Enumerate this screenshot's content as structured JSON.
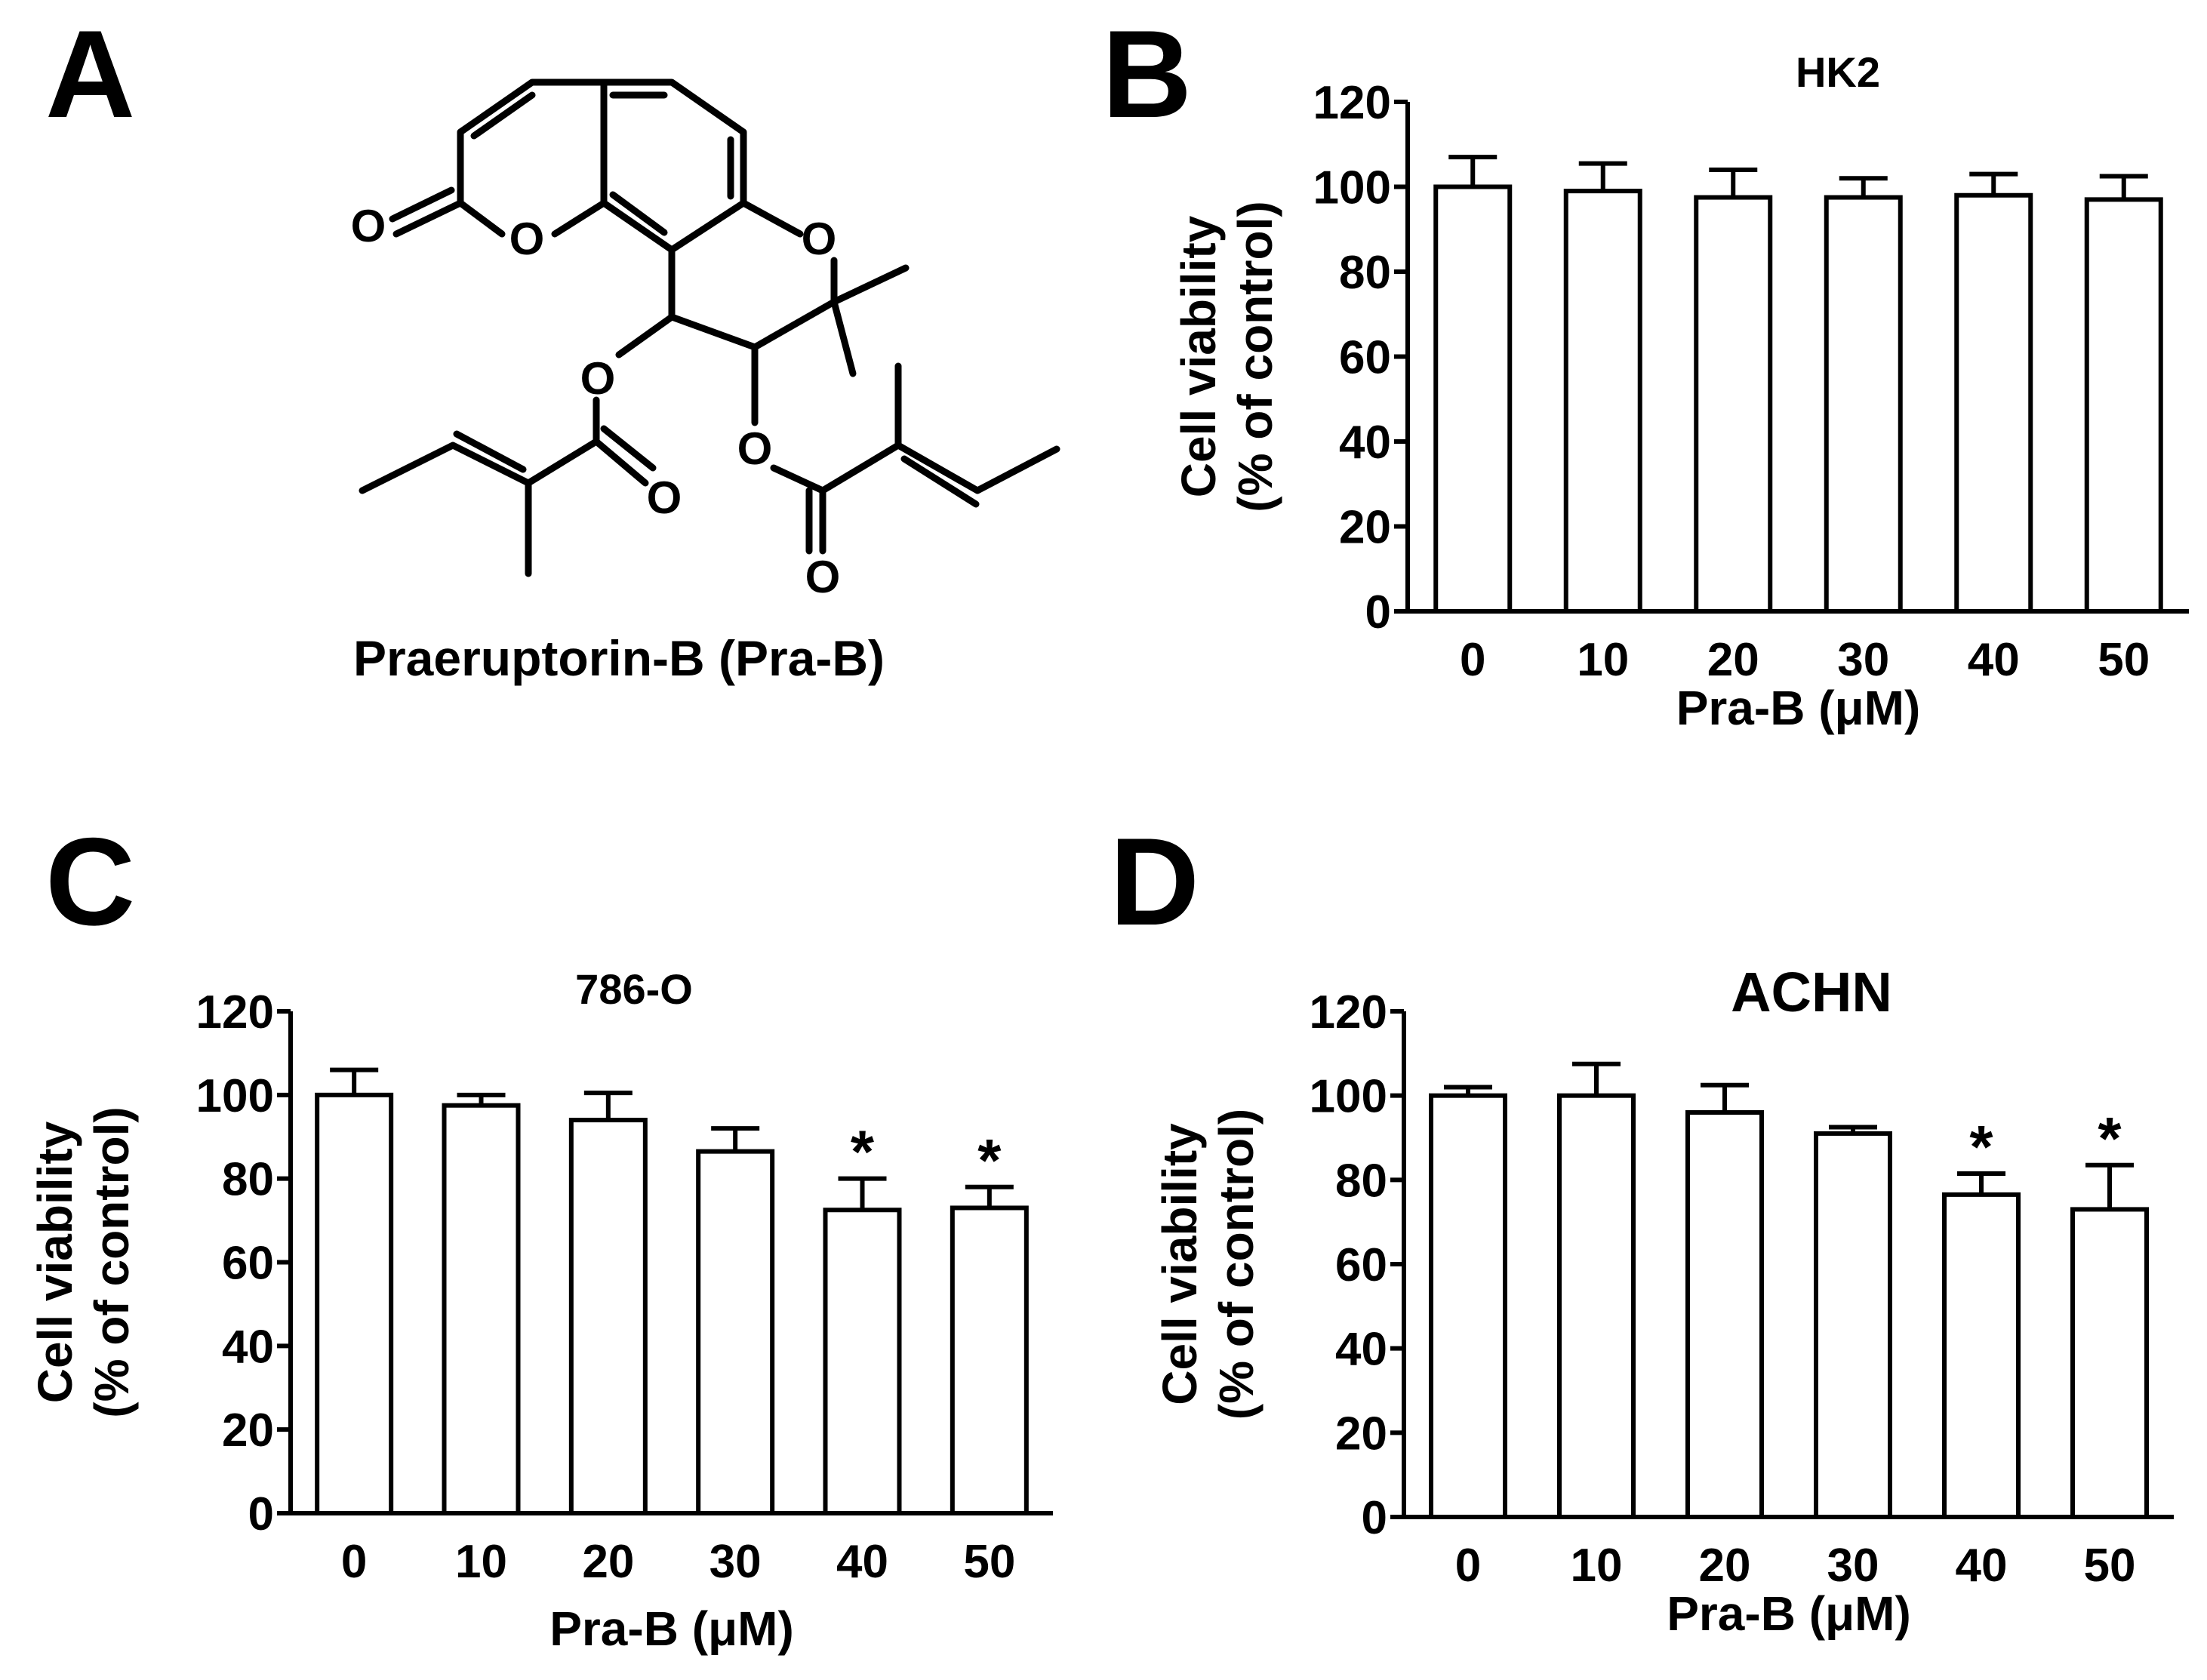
{
  "panels": {
    "A": {
      "letter": "A",
      "compound_name": "Praeruptorin-B (Pra-B)"
    },
    "B": {
      "letter": "B"
    },
    "C": {
      "letter": "C"
    },
    "D": {
      "letter": "D"
    }
  },
  "chart_data": [
    {
      "panel": "B",
      "type": "bar",
      "title": "HK2",
      "xlabel": "Pra-B (μM)",
      "ylabel_line1": "Cell viability",
      "ylabel_line2": "(% of control)",
      "categories": [
        "0",
        "10",
        "20",
        "30",
        "40",
        "50"
      ],
      "values": [
        100,
        99,
        97.5,
        97.5,
        98,
        97
      ],
      "errors": [
        7,
        6.5,
        6.5,
        4.5,
        5,
        5.5
      ],
      "significance": [
        "",
        "",
        "",
        "",
        "",
        ""
      ],
      "ylim": [
        0,
        120
      ],
      "yticks": [
        0,
        20,
        40,
        60,
        80,
        100,
        120
      ]
    },
    {
      "panel": "C",
      "type": "bar",
      "title": "786-O",
      "xlabel": "Pra-B (μM)",
      "ylabel_line1": "Cell viability",
      "ylabel_line2": "(% of control)",
      "categories": [
        "0",
        "10",
        "20",
        "30",
        "40",
        "50"
      ],
      "values": [
        100,
        97.5,
        94,
        86.5,
        72.5,
        73
      ],
      "errors": [
        6,
        2.5,
        6.5,
        5.5,
        7.5,
        5
      ],
      "significance": [
        "",
        "",
        "",
        "",
        "*",
        "*"
      ],
      "ylim": [
        0,
        120
      ],
      "yticks": [
        0,
        20,
        40,
        60,
        80,
        100,
        120
      ]
    },
    {
      "panel": "D",
      "type": "bar",
      "title": "ACHN",
      "xlabel": "Pra-B (μM)",
      "ylabel_line1": "Cell viability",
      "ylabel_line2": "(% of control)",
      "categories": [
        "0",
        "10",
        "20",
        "30",
        "40",
        "50"
      ],
      "values": [
        100,
        100,
        96,
        91,
        76.5,
        73
      ],
      "errors": [
        2,
        7.5,
        6.5,
        1.5,
        5,
        10.5
      ],
      "significance": [
        "",
        "",
        "",
        "",
        "*",
        "*"
      ],
      "ylim": [
        0,
        120
      ],
      "yticks": [
        0,
        20,
        40,
        60,
        80,
        100,
        120
      ]
    }
  ]
}
